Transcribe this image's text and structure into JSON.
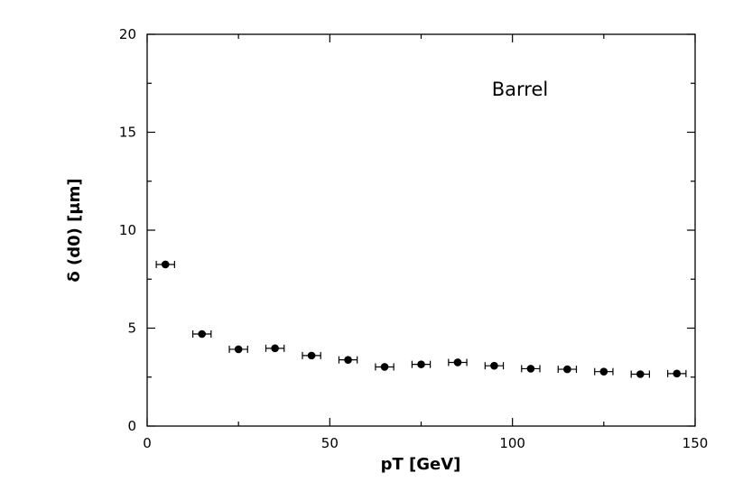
{
  "chart_data": {
    "type": "scatter",
    "title": "",
    "xlabel": "pT [GeV]",
    "ylabel": "δ (d0) [μm]",
    "xlim": [
      0,
      150
    ],
    "ylim": [
      0,
      20
    ],
    "xticks": [
      0,
      50,
      100,
      150
    ],
    "yticks": [
      0,
      5,
      10,
      15,
      20
    ],
    "xtick_labels": [
      "0",
      "50",
      "100",
      "150"
    ],
    "ytick_labels": [
      "0",
      "5",
      "10",
      "15",
      "20"
    ],
    "annotation": "Barrel",
    "grid": false,
    "series": [
      {
        "x": [
          5,
          15,
          25,
          35,
          45,
          55,
          65,
          75,
          85,
          95,
          105,
          115,
          125,
          135,
          145
        ],
        "y": [
          8.25,
          4.7,
          3.92,
          3.97,
          3.6,
          3.38,
          3.02,
          3.15,
          3.25,
          3.08,
          2.93,
          2.9,
          2.78,
          2.65,
          2.68
        ],
        "x_err": [
          2.5,
          2.5,
          2.5,
          2.5,
          2.5,
          2.5,
          2.5,
          2.5,
          2.5,
          2.5,
          2.5,
          2.5,
          2.5,
          2.5,
          2.5
        ],
        "y_err": [
          0.12,
          0.08,
          0.06,
          0.06,
          0.06,
          0.06,
          0.06,
          0.06,
          0.06,
          0.06,
          0.06,
          0.06,
          0.06,
          0.06,
          0.06
        ],
        "marker_color": "#000000"
      }
    ]
  }
}
